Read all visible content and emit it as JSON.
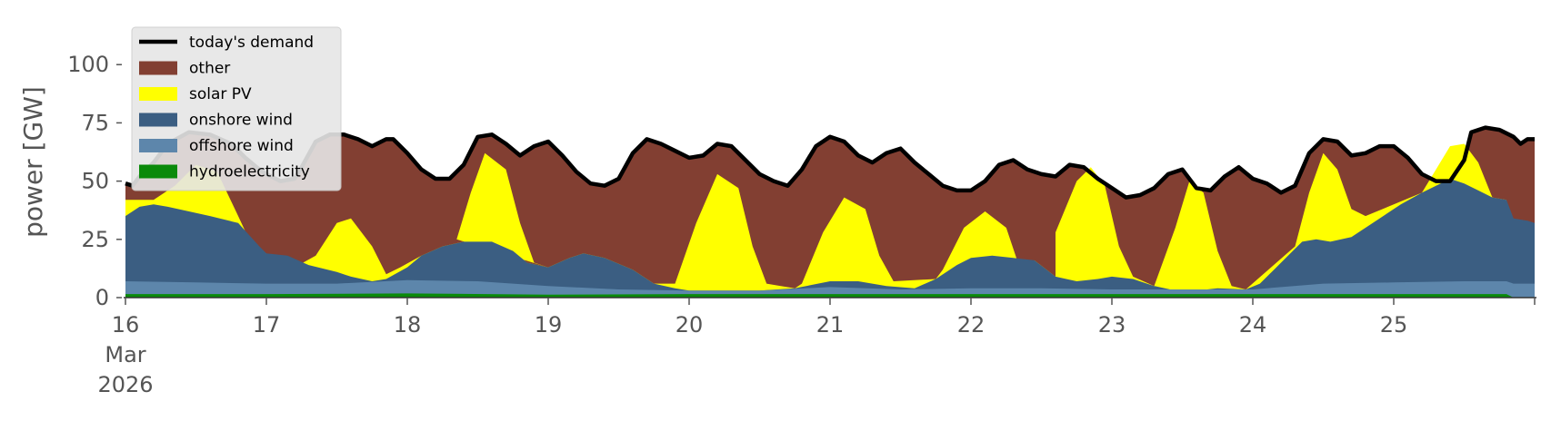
{
  "chart_data": {
    "type": "area",
    "ylabel": "power [GW]",
    "xlabel": "",
    "ylim": [
      0,
      118
    ],
    "y_ticks": [
      0,
      25,
      50,
      75,
      100
    ],
    "x_range": [
      0,
      10
    ],
    "x_ticks": [
      {
        "x": 0,
        "label": "16",
        "sub": [
          "Mar",
          "2026"
        ]
      },
      {
        "x": 1,
        "label": "17"
      },
      {
        "x": 2,
        "label": "18"
      },
      {
        "x": 3,
        "label": "19"
      },
      {
        "x": 4,
        "label": "20"
      },
      {
        "x": 5,
        "label": "21"
      },
      {
        "x": 6,
        "label": "22"
      },
      {
        "x": 7,
        "label": "23"
      },
      {
        "x": 8,
        "label": "24"
      },
      {
        "x": 9,
        "label": "25"
      },
      {
        "x": 10,
        "label": ""
      }
    ],
    "grid": false,
    "legend_position": "top-left",
    "legend": [
      {
        "label": "today's demand",
        "kind": "line",
        "color": "#000000"
      },
      {
        "label": "other",
        "kind": "patch",
        "color": "#823f32"
      },
      {
        "label": "solar PV",
        "kind": "patch",
        "color": "#ffff00"
      },
      {
        "label": "onshore wind",
        "kind": "patch",
        "color": "#3b5e82"
      },
      {
        "label": "offshore wind",
        "kind": "patch",
        "color": "#5d86ab"
      },
      {
        "label": "hydroelectricity",
        "kind": "patch",
        "color": "#0a8a0a"
      }
    ],
    "series": [
      {
        "name": "hydroelectricity",
        "color": "#0a8a0a",
        "points": [
          [
            0,
            1.5
          ],
          [
            1,
            1.5
          ],
          [
            2,
            1.8
          ],
          [
            3,
            1.3
          ],
          [
            4,
            1.5
          ],
          [
            5,
            1.5
          ],
          [
            6,
            1.5
          ],
          [
            7,
            1.5
          ],
          [
            8,
            1.5
          ],
          [
            9,
            1.5
          ],
          [
            9.8,
            1.5
          ],
          [
            9.85,
            0
          ],
          [
            10,
            0
          ]
        ]
      },
      {
        "name": "offshore wind",
        "color": "#5d86ab",
        "points": [
          [
            0,
            7
          ],
          [
            0.5,
            6.5
          ],
          [
            1,
            6
          ],
          [
            1.5,
            6
          ],
          [
            2,
            7.5
          ],
          [
            2.5,
            7
          ],
          [
            3,
            5
          ],
          [
            3.5,
            3.5
          ],
          [
            4,
            3
          ],
          [
            4.5,
            3
          ],
          [
            5,
            4.5
          ],
          [
            5.5,
            3.5
          ],
          [
            6,
            4
          ],
          [
            6.5,
            4
          ],
          [
            7,
            3.5
          ],
          [
            7.5,
            3.5
          ],
          [
            8,
            3.5
          ],
          [
            8.5,
            6
          ],
          [
            9,
            6.5
          ],
          [
            9.5,
            7
          ],
          [
            9.8,
            7
          ],
          [
            9.85,
            6
          ],
          [
            10,
            6
          ]
        ]
      },
      {
        "name": "onshore wind",
        "color": "#3b5e82",
        "points": [
          [
            0,
            35
          ],
          [
            0.1,
            39
          ],
          [
            0.2,
            40
          ],
          [
            0.3,
            39
          ],
          [
            0.45,
            37
          ],
          [
            0.6,
            35
          ],
          [
            0.8,
            32
          ],
          [
            0.95,
            22
          ],
          [
            1,
            19
          ],
          [
            1.15,
            18
          ],
          [
            1.3,
            14
          ],
          [
            1.5,
            11
          ],
          [
            1.6,
            9
          ],
          [
            1.75,
            7
          ],
          [
            1.85,
            8
          ],
          [
            2,
            13
          ],
          [
            2.1,
            18
          ],
          [
            2.25,
            22
          ],
          [
            2.4,
            24
          ],
          [
            2.6,
            24
          ],
          [
            2.75,
            20
          ],
          [
            2.85,
            15
          ],
          [
            3,
            13
          ],
          [
            3.15,
            17
          ],
          [
            3.25,
            19
          ],
          [
            3.4,
            17
          ],
          [
            3.6,
            12
          ],
          [
            3.75,
            6
          ],
          [
            3.9,
            4
          ],
          [
            4,
            3
          ],
          [
            4.25,
            3
          ],
          [
            4.5,
            3
          ],
          [
            4.75,
            4
          ],
          [
            5,
            7
          ],
          [
            5.2,
            7
          ],
          [
            5.4,
            5
          ],
          [
            5.6,
            4
          ],
          [
            5.75,
            8
          ],
          [
            5.9,
            14
          ],
          [
            6,
            17
          ],
          [
            6.15,
            18
          ],
          [
            6.3,
            17
          ],
          [
            6.45,
            16
          ],
          [
            6.6,
            9
          ],
          [
            6.75,
            7
          ],
          [
            6.9,
            8
          ],
          [
            7,
            9
          ],
          [
            7.15,
            8
          ],
          [
            7.3,
            5
          ],
          [
            7.45,
            3
          ],
          [
            7.6,
            3
          ],
          [
            7.75,
            4
          ],
          [
            7.95,
            3.5
          ],
          [
            8.05,
            6
          ],
          [
            8.15,
            12
          ],
          [
            8.25,
            18
          ],
          [
            8.35,
            24
          ],
          [
            8.45,
            25
          ],
          [
            8.55,
            24
          ],
          [
            8.7,
            26
          ],
          [
            8.8,
            30
          ],
          [
            8.9,
            34
          ],
          [
            9.05,
            40
          ],
          [
            9.2,
            45
          ],
          [
            9.3,
            48
          ],
          [
            9.4,
            51
          ],
          [
            9.5,
            49
          ],
          [
            9.6,
            46
          ],
          [
            9.7,
            43
          ],
          [
            9.8,
            42
          ],
          [
            9.85,
            34
          ],
          [
            9.95,
            33
          ],
          [
            10,
            32
          ]
        ]
      },
      {
        "name": "solar PV",
        "color": "#ffff00",
        "points": [
          [
            0,
            42
          ],
          [
            0.2,
            42
          ],
          [
            0.35,
            48
          ],
          [
            0.5,
            57
          ],
          [
            0.65,
            54
          ],
          [
            0.8,
            35
          ],
          [
            0.9,
            22
          ],
          [
            1,
            19
          ],
          [
            1,
            15
          ],
          [
            1.2,
            13
          ],
          [
            1.35,
            18
          ],
          [
            1.5,
            32
          ],
          [
            1.6,
            34
          ],
          [
            1.75,
            22
          ],
          [
            1.85,
            10
          ],
          [
            1.95,
            13
          ],
          [
            2.1,
            18
          ],
          [
            2.25,
            22
          ],
          [
            2.4,
            24
          ],
          [
            2.6,
            24
          ],
          [
            2.75,
            20
          ],
          [
            2.85,
            15
          ],
          [
            3,
            13
          ],
          [
            2.35,
            25
          ],
          [
            2.45,
            45
          ],
          [
            2.55,
            62
          ],
          [
            2.7,
            55
          ],
          [
            2.8,
            32
          ],
          [
            2.9,
            15
          ],
          [
            3,
            13
          ],
          [
            3.15,
            17
          ],
          [
            3.25,
            19
          ],
          [
            3.4,
            17
          ],
          [
            3.6,
            12
          ],
          [
            3.75,
            6
          ],
          [
            3.9,
            6
          ],
          [
            4.05,
            32
          ],
          [
            4.2,
            53
          ],
          [
            4.35,
            47
          ],
          [
            4.45,
            22
          ],
          [
            4.55,
            6
          ],
          [
            4.65,
            5
          ],
          [
            4.75,
            4
          ],
          [
            4.8,
            6
          ],
          [
            4.95,
            28
          ],
          [
            5.1,
            43
          ],
          [
            5.25,
            38
          ],
          [
            5.35,
            18
          ],
          [
            5.45,
            7
          ],
          [
            5.75,
            8
          ],
          [
            5.8,
            12
          ],
          [
            5.95,
            30
          ],
          [
            6.1,
            37
          ],
          [
            6.25,
            30
          ],
          [
            6.35,
            12
          ],
          [
            6.45,
            16
          ],
          [
            6.6,
            9
          ],
          [
            6.6,
            28
          ],
          [
            6.75,
            50
          ],
          [
            6.85,
            56
          ],
          [
            6.95,
            48
          ],
          [
            7.05,
            22
          ],
          [
            7.15,
            9
          ],
          [
            7.3,
            5
          ],
          [
            7.45,
            30
          ],
          [
            7.55,
            50
          ],
          [
            7.65,
            45
          ],
          [
            7.75,
            20
          ],
          [
            7.85,
            5
          ],
          [
            7.95,
            3.5
          ],
          [
            8.3,
            22
          ],
          [
            8.4,
            45
          ],
          [
            8.5,
            62
          ],
          [
            8.6,
            55
          ],
          [
            8.7,
            38
          ],
          [
            8.8,
            35
          ],
          [
            9.2,
            45
          ],
          [
            9.3,
            55
          ],
          [
            9.4,
            65
          ],
          [
            9.5,
            66
          ],
          [
            9.6,
            58
          ],
          [
            9.7,
            43
          ],
          [
            9.8,
            42
          ]
        ]
      },
      {
        "name": "today's demand",
        "color": "#000000",
        "points": [
          [
            0,
            49
          ],
          [
            0.05,
            48
          ],
          [
            0.1,
            52
          ],
          [
            0.2,
            58
          ],
          [
            0.3,
            66
          ],
          [
            0.45,
            71
          ],
          [
            0.6,
            70
          ],
          [
            0.75,
            66
          ],
          [
            0.85,
            60
          ],
          [
            0.95,
            55
          ],
          [
            1,
            53
          ],
          [
            1.1,
            50
          ],
          [
            1.2,
            51
          ],
          [
            1.25,
            56
          ],
          [
            1.35,
            67
          ],
          [
            1.45,
            70
          ],
          [
            1.55,
            70
          ],
          [
            1.65,
            68
          ],
          [
            1.75,
            65
          ],
          [
            1.85,
            68
          ],
          [
            1.9,
            68
          ],
          [
            2,
            62
          ],
          [
            2.1,
            55
          ],
          [
            2.2,
            51
          ],
          [
            2.3,
            51
          ],
          [
            2.4,
            57
          ],
          [
            2.5,
            69
          ],
          [
            2.6,
            70
          ],
          [
            2.7,
            66
          ],
          [
            2.8,
            61
          ],
          [
            2.9,
            65
          ],
          [
            3,
            67
          ],
          [
            3.1,
            61
          ],
          [
            3.2,
            54
          ],
          [
            3.3,
            49
          ],
          [
            3.4,
            48
          ],
          [
            3.5,
            51
          ],
          [
            3.6,
            62
          ],
          [
            3.7,
            68
          ],
          [
            3.8,
            66
          ],
          [
            3.9,
            63
          ],
          [
            4,
            60
          ],
          [
            4.1,
            61
          ],
          [
            4.2,
            66
          ],
          [
            4.3,
            65
          ],
          [
            4.4,
            59
          ],
          [
            4.5,
            53
          ],
          [
            4.6,
            50
          ],
          [
            4.7,
            48
          ],
          [
            4.8,
            55
          ],
          [
            4.9,
            65
          ],
          [
            5,
            69
          ],
          [
            5.1,
            67
          ],
          [
            5.2,
            61
          ],
          [
            5.3,
            58
          ],
          [
            5.4,
            62
          ],
          [
            5.5,
            64
          ],
          [
            5.6,
            58
          ],
          [
            5.7,
            53
          ],
          [
            5.8,
            48
          ],
          [
            5.9,
            46
          ],
          [
            6,
            46
          ],
          [
            6.1,
            50
          ],
          [
            6.2,
            57
          ],
          [
            6.3,
            59
          ],
          [
            6.4,
            55
          ],
          [
            6.5,
            53
          ],
          [
            6.6,
            52
          ],
          [
            6.7,
            57
          ],
          [
            6.8,
            56
          ],
          [
            6.9,
            51
          ],
          [
            7,
            47
          ],
          [
            7.1,
            43
          ],
          [
            7.2,
            44
          ],
          [
            7.3,
            47
          ],
          [
            7.4,
            53
          ],
          [
            7.5,
            55
          ],
          [
            7.6,
            47
          ],
          [
            7.7,
            46
          ],
          [
            7.8,
            52
          ],
          [
            7.9,
            56
          ],
          [
            8,
            51
          ],
          [
            8.1,
            49
          ],
          [
            8.2,
            45
          ],
          [
            8.3,
            48
          ],
          [
            8.4,
            62
          ],
          [
            8.5,
            68
          ],
          [
            8.6,
            67
          ],
          [
            8.7,
            61
          ],
          [
            8.8,
            62
          ],
          [
            8.9,
            65
          ],
          [
            9,
            65
          ],
          [
            9.1,
            60
          ],
          [
            9.2,
            53
          ],
          [
            9.3,
            50
          ],
          [
            9.4,
            50
          ],
          [
            9.5,
            59
          ],
          [
            9.55,
            71
          ],
          [
            9.65,
            73
          ],
          [
            9.75,
            72
          ],
          [
            9.85,
            69
          ],
          [
            9.9,
            66
          ],
          [
            9.95,
            68
          ],
          [
            10,
            68
          ]
        ]
      }
    ]
  }
}
